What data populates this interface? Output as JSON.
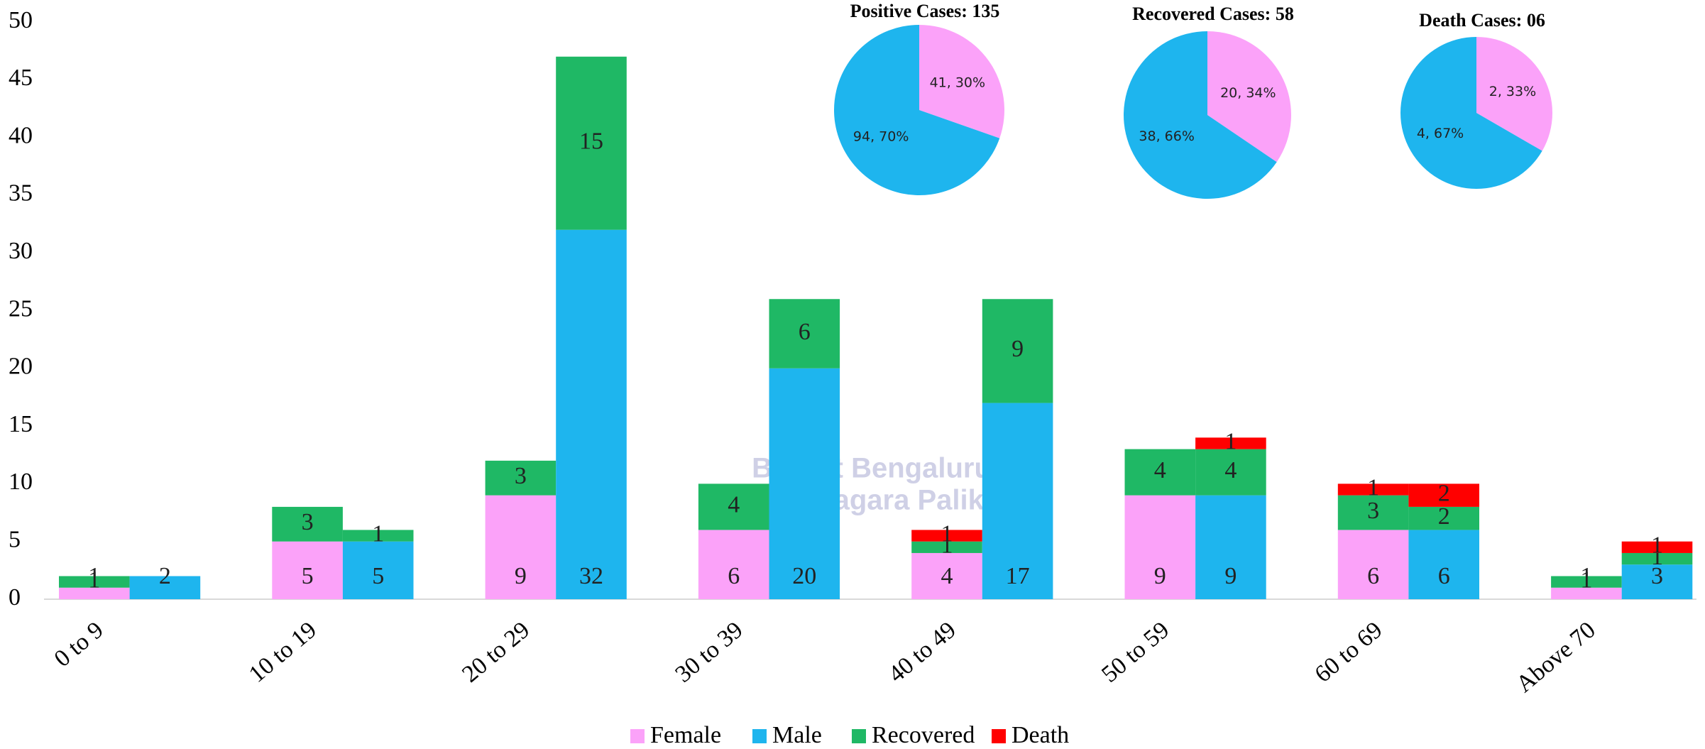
{
  "chart_data": {
    "type": "stacked_grouped_bar",
    "categories": [
      "0 to 9",
      "10 to 19",
      "20 to 29",
      "30 to 39",
      "40 to 49",
      "50 to 59",
      "60 to 69",
      "Above 70"
    ],
    "series": [
      {
        "name": "Female",
        "color": "#fba2f9",
        "values": [
          1,
          5,
          9,
          6,
          4,
          9,
          6,
          1
        ]
      },
      {
        "name": "Male",
        "color": "#1eb5ee",
        "values": [
          2,
          5,
          32,
          20,
          17,
          9,
          6,
          3
        ]
      },
      {
        "name": "Recovered",
        "color": "#1fb865",
        "values": [
          [
            1,
            null
          ],
          [
            3,
            1
          ],
          [
            3,
            15
          ],
          [
            4,
            6
          ],
          [
            1,
            9
          ],
          [
            4,
            4
          ],
          [
            3,
            2
          ],
          [
            1,
            1
          ]
        ]
      },
      {
        "name": "Death",
        "color": "#ff0000",
        "values": [
          [
            null,
            null
          ],
          [
            null,
            null
          ],
          [
            null,
            null
          ],
          [
            null,
            null
          ],
          [
            1,
            null
          ],
          [
            null,
            1
          ],
          [
            1,
            2
          ],
          [
            null,
            1
          ]
        ]
      }
    ],
    "ylim": [
      0,
      50
    ],
    "yticks": [
      0,
      5,
      10,
      15,
      20,
      25,
      30,
      35,
      40,
      45,
      50
    ],
    "watermark": [
      "Bruhat Bengaluru",
      "Mahanagara Palike"
    ],
    "pies": [
      {
        "title": "Positive Cases: 135",
        "values": [
          41,
          94
        ],
        "value_labels": [
          "41, 30%",
          "94, 70%"
        ]
      },
      {
        "title": "Recovered Cases: 58",
        "values": [
          20,
          38
        ],
        "value_labels": [
          "20, 34%",
          "38, 66%"
        ]
      },
      {
        "title": "Death Cases: 06",
        "values": [
          2,
          4
        ],
        "value_labels": [
          "2, 33%",
          "4, 67%"
        ]
      }
    ]
  }
}
